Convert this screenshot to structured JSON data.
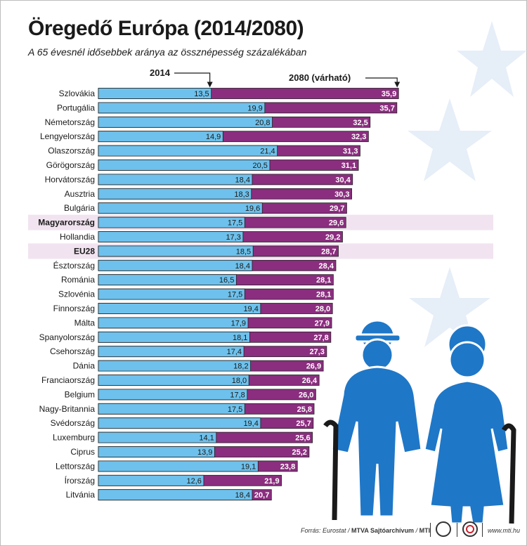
{
  "header": {
    "title": "Öregedő Európa (2014/2080)",
    "subtitle": "A 65 évesnél idősebbek aránya az össznépesség százalékában"
  },
  "footer": {
    "source": "Forrás: Eurostat /",
    "archive": "MTVA Sajtóarchívum",
    "slash": " / ",
    "mti": "MTI",
    "site": "www.mti.hu"
  },
  "colors": {
    "bar_2014": "#6ec1ec",
    "bar_2080": "#8b2e7f",
    "highlight": "#f1e4f0",
    "figure": "#1f77c7",
    "star": "#e6eef8"
  },
  "chart_data": {
    "type": "bar",
    "orientation": "horizontal",
    "title": "Öregedő Európa (2014/2080)",
    "subtitle": "A 65 évesnél idősebbek aránya az össznépesség százalékában",
    "categories": [
      "Szlovákia",
      "Portugália",
      "Németország",
      "Lengyelország",
      "Olaszország",
      "Görögország",
      "Horvátország",
      "Ausztria",
      "Bulgária",
      "Magyarország",
      "Hollandia",
      "EU28",
      "Észtország",
      "Románia",
      "Szlovénia",
      "Finnország",
      "Málta",
      "Spanyolország",
      "Csehország",
      "Dánia",
      "Franciaország",
      "Belgium",
      "Nagy-Britannia",
      "Svédország",
      "Luxemburg",
      "Ciprus",
      "Lettország",
      "Írország",
      "Litvánia"
    ],
    "highlighted": [
      "Magyarország",
      "EU28"
    ],
    "series": [
      {
        "name": "2014",
        "values": [
          13.5,
          19.9,
          20.8,
          14.9,
          21.4,
          20.5,
          18.4,
          18.3,
          19.6,
          17.5,
          17.3,
          18.5,
          18.4,
          16.5,
          17.5,
          19.4,
          17.9,
          18.1,
          17.4,
          18.2,
          18.0,
          17.8,
          17.5,
          19.4,
          14.1,
          13.9,
          19.1,
          12.6,
          18.4
        ]
      },
      {
        "name": "2080 (várható)",
        "values": [
          35.9,
          35.7,
          32.5,
          32.3,
          31.3,
          31.1,
          30.4,
          30.3,
          29.7,
          29.6,
          29.2,
          28.7,
          28.4,
          28.1,
          28.1,
          28.0,
          27.9,
          27.8,
          27.3,
          26.9,
          26.4,
          26.0,
          25.8,
          25.7,
          25.6,
          25.2,
          23.8,
          21.9,
          20.7
        ]
      }
    ]
  }
}
